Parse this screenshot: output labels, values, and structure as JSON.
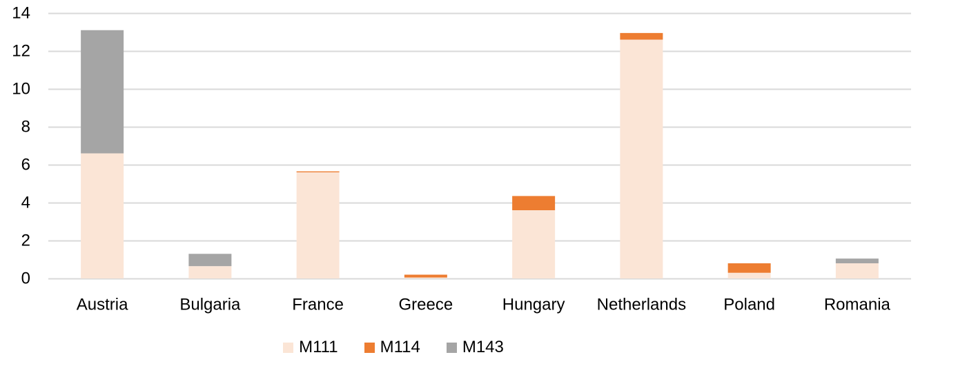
{
  "chart_data": {
    "type": "bar",
    "stacked": true,
    "categories": [
      "Austria",
      "Bulgaria",
      "France",
      "Greece",
      "Hungary",
      "Netherlands",
      "Poland",
      "Romania"
    ],
    "series": [
      {
        "name": "M111",
        "color": "#FBE5D6",
        "values": [
          6.6,
          0.65,
          5.6,
          0.05,
          3.6,
          12.6,
          0.3,
          0.8
        ]
      },
      {
        "name": "M114",
        "color": "#ED7D31",
        "values": [
          0,
          0,
          0.05,
          0.15,
          0.75,
          0.35,
          0.5,
          0
        ]
      },
      {
        "name": "M143",
        "color": "#A5A5A5",
        "values": [
          6.5,
          0.65,
          0,
          0,
          0,
          0,
          0,
          0.25
        ]
      }
    ],
    "title": "",
    "xlabel": "",
    "ylabel": "",
    "ylim": [
      0,
      14
    ],
    "yticks": [
      0,
      2,
      4,
      6,
      8,
      10,
      12,
      14
    ],
    "grid": true,
    "legend_position": "bottom",
    "gridline_color": "#D9D9D9"
  }
}
